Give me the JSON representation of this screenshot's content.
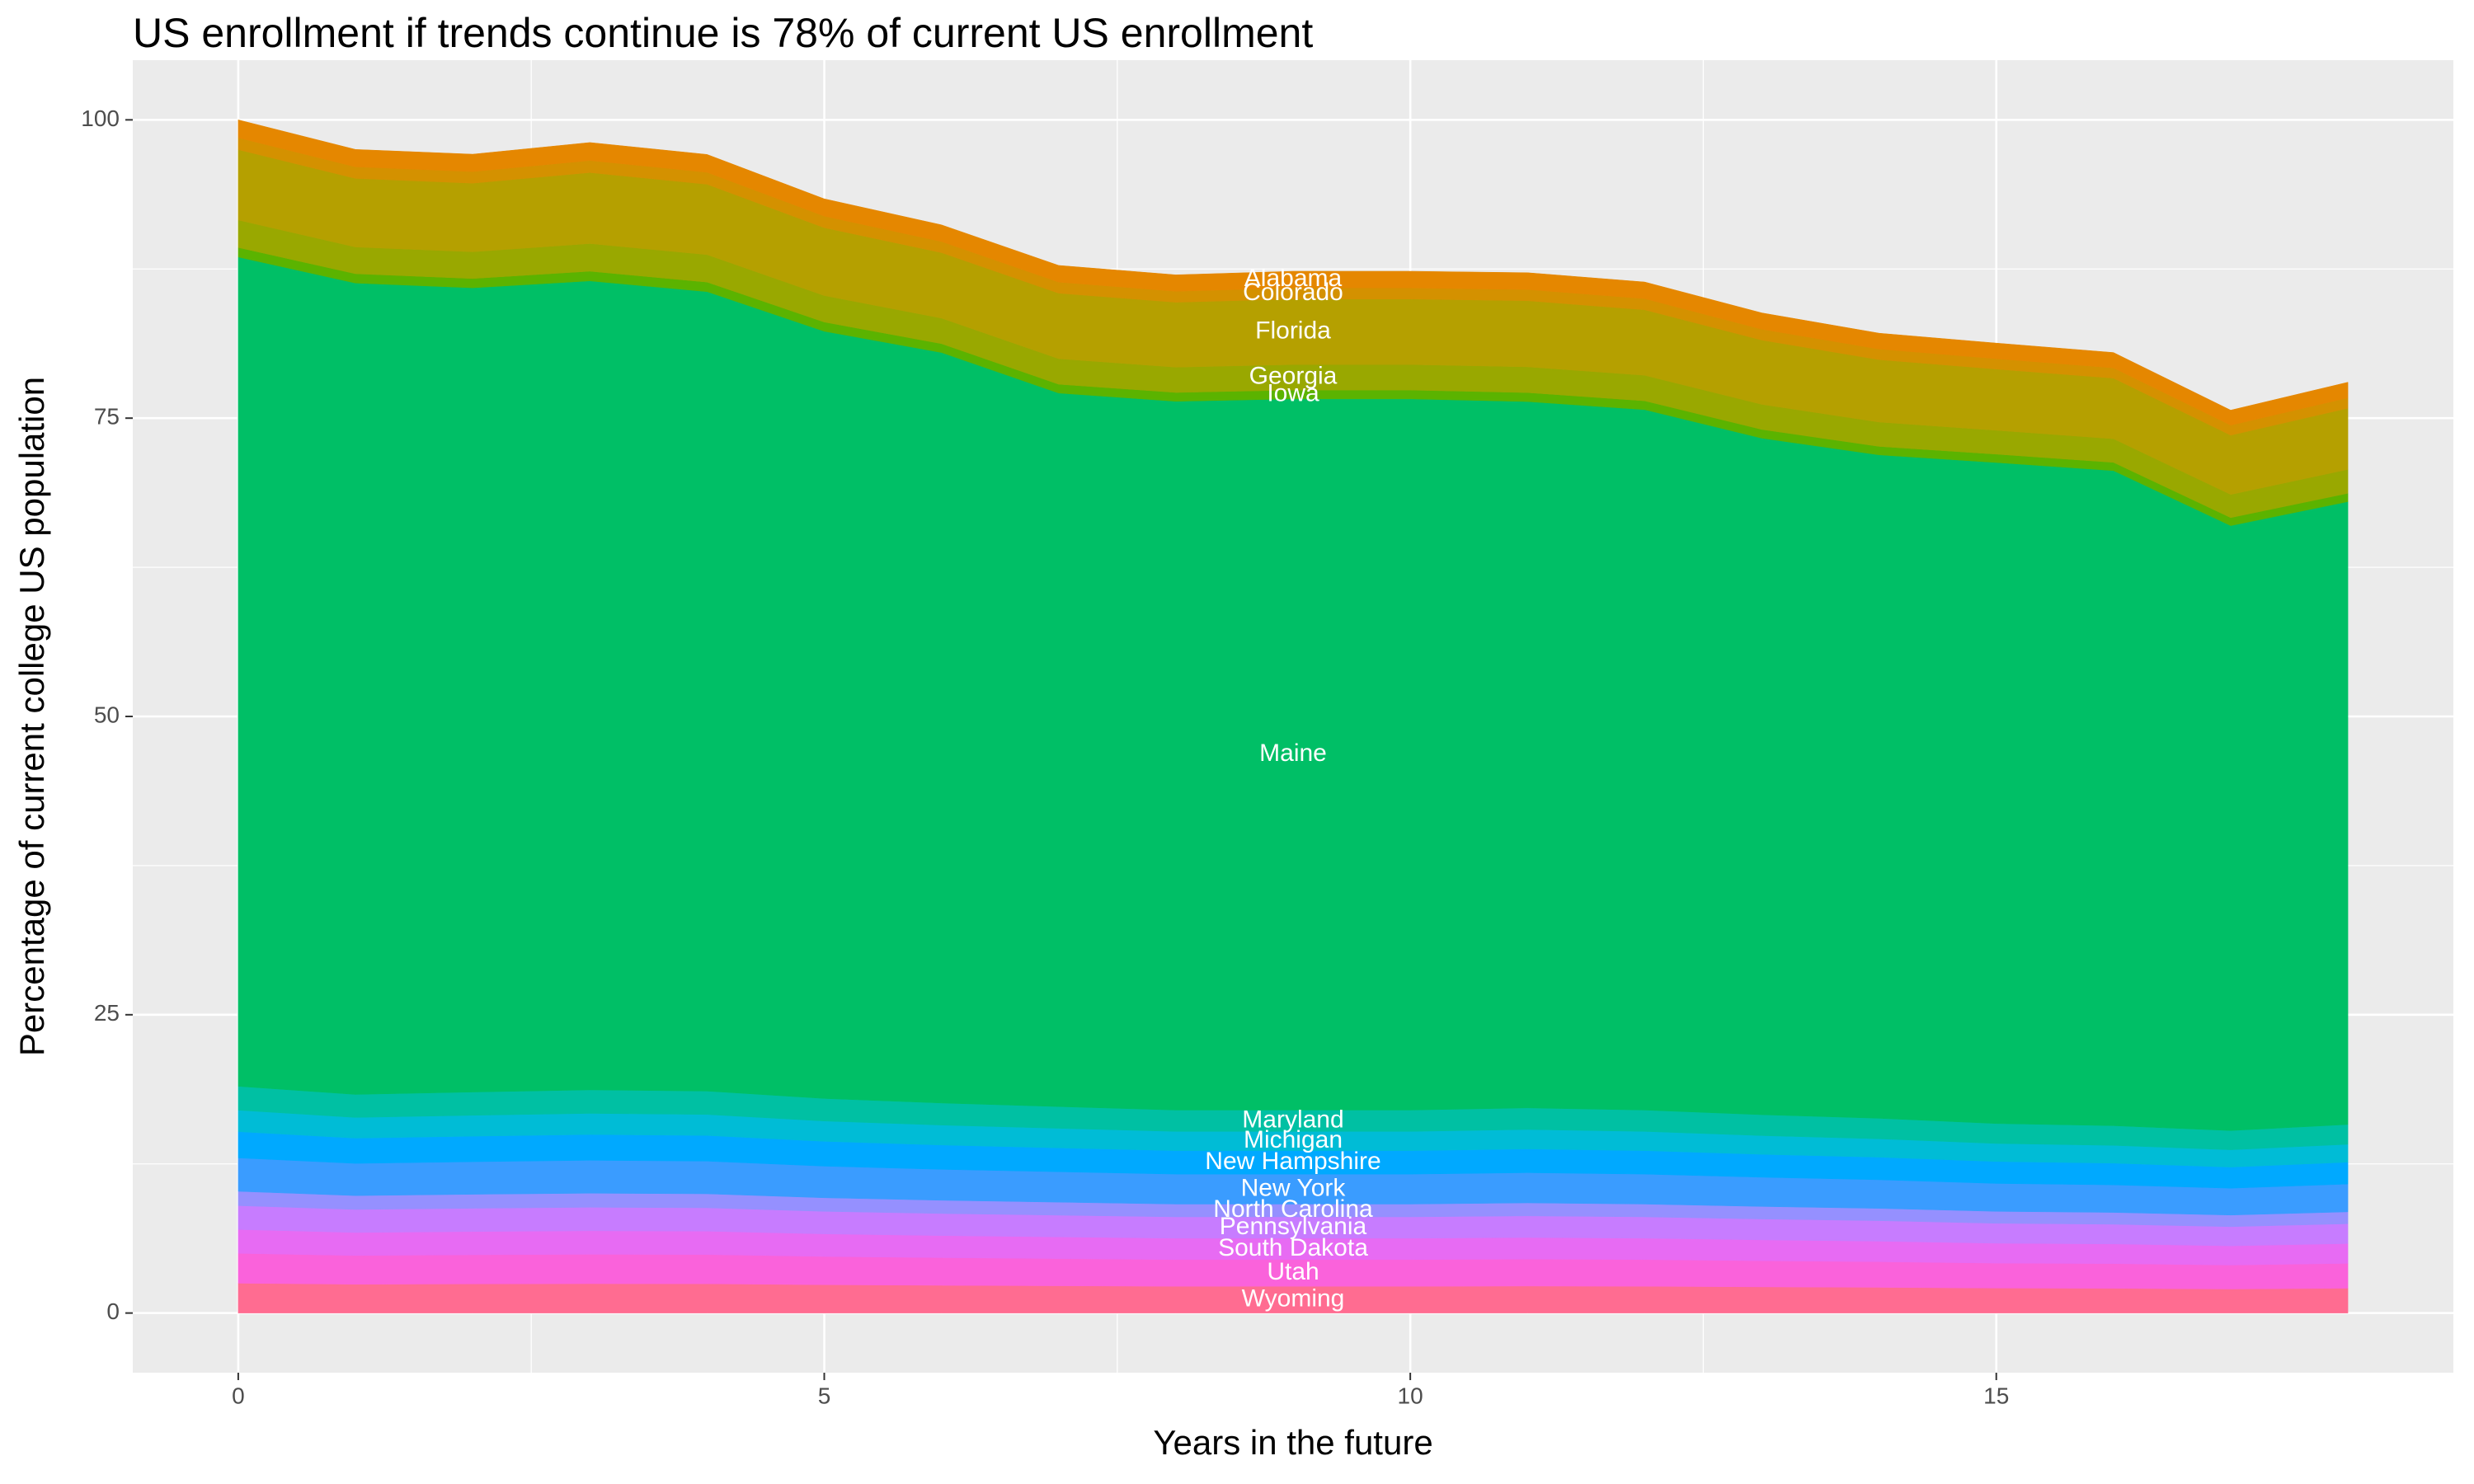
{
  "chart_data": {
    "type": "stacked_area",
    "title": "US enrollment if trends continue is 78% of current US enrollment",
    "x_label": "Years in the future",
    "y_label": "Percentage of current college US population",
    "x": [
      0,
      1,
      2,
      3,
      4,
      5,
      6,
      7,
      8,
      9,
      10,
      11,
      12,
      13,
      14,
      15,
      16,
      17,
      18
    ],
    "xlim": [
      -0.9,
      18.9
    ],
    "xticks": [
      0,
      5,
      10,
      15
    ],
    "ylim": [
      -5,
      105
    ],
    "yticks": [
      0,
      25,
      50,
      75,
      100
    ],
    "grid": true,
    "label_x": 9,
    "series": [
      {
        "name": "Alabama",
        "color": "#e58700",
        "values": [
          1.5,
          1.46,
          1.46,
          1.51,
          1.5,
          1.45,
          1.4,
          1.4,
          1.38,
          1.4,
          1.4,
          1.41,
          1.4,
          1.37,
          1.33,
          1.31,
          1.29,
          1.26,
          1.31
        ]
      },
      {
        "name": "Colorado",
        "color": "#d49100",
        "values": [
          1.0,
          0.97,
          0.97,
          1.01,
          1.0,
          0.97,
          0.93,
          0.93,
          0.92,
          0.93,
          0.93,
          0.94,
          0.93,
          0.91,
          0.89,
          0.87,
          0.86,
          0.84,
          0.87
        ]
      },
      {
        "name": "Florida",
        "color": "#b5a000",
        "values": [
          5.9,
          5.75,
          5.75,
          5.95,
          5.9,
          5.69,
          5.49,
          5.49,
          5.44,
          5.49,
          5.49,
          5.54,
          5.49,
          5.39,
          5.23,
          5.13,
          5.08,
          4.97,
          5.13
        ]
      },
      {
        "name": "Georgia",
        "color": "#99a800",
        "values": [
          2.3,
          2.24,
          2.24,
          2.32,
          2.3,
          2.22,
          2.14,
          2.14,
          2.12,
          2.14,
          2.14,
          2.16,
          2.14,
          2.1,
          2.04,
          2.0,
          1.98,
          1.94,
          2.0
        ]
      },
      {
        "name": "Iowa",
        "color": "#5bb300",
        "values": [
          0.8,
          0.78,
          0.78,
          0.81,
          0.8,
          0.77,
          0.74,
          0.74,
          0.74,
          0.74,
          0.74,
          0.75,
          0.74,
          0.73,
          0.71,
          0.7,
          0.69,
          0.67,
          0.7
        ]
      },
      {
        "name": "Maine",
        "color": "#00bf66",
        "values": [
          69.5,
          68.0,
          67.4,
          67.8,
          67.0,
          64.3,
          62.9,
          59.8,
          59.4,
          59.6,
          59.6,
          59.2,
          58.7,
          56.7,
          55.6,
          55.4,
          54.9,
          50.7,
          52.2
        ]
      },
      {
        "name": "Maryland",
        "color": "#00c0a3",
        "values": [
          2.0,
          1.93,
          1.95,
          1.97,
          1.96,
          1.89,
          1.85,
          1.82,
          1.79,
          1.79,
          1.79,
          1.81,
          1.79,
          1.75,
          1.72,
          1.67,
          1.65,
          1.61,
          1.66
        ]
      },
      {
        "name": "Michigan",
        "color": "#00bcd6",
        "values": [
          1.8,
          1.73,
          1.75,
          1.77,
          1.76,
          1.7,
          1.67,
          1.64,
          1.61,
          1.61,
          1.61,
          1.63,
          1.61,
          1.57,
          1.54,
          1.51,
          1.49,
          1.45,
          1.5
        ]
      },
      {
        "name": "New Hampshire",
        "color": "#00a9ff",
        "values": [
          2.2,
          2.12,
          2.14,
          2.16,
          2.15,
          2.08,
          2.04,
          2.0,
          1.97,
          1.97,
          1.97,
          1.99,
          1.97,
          1.92,
          1.89,
          1.84,
          1.82,
          1.77,
          1.83
        ]
      },
      {
        "name": "New York",
        "color": "#3a9cff",
        "values": [
          2.8,
          2.7,
          2.73,
          2.76,
          2.74,
          2.65,
          2.59,
          2.55,
          2.51,
          2.51,
          2.51,
          2.53,
          2.51,
          2.45,
          2.4,
          2.34,
          2.31,
          2.25,
          2.33
        ]
      },
      {
        "name": "North Carolina",
        "color": "#9590ff",
        "values": [
          1.2,
          1.16,
          1.17,
          1.18,
          1.17,
          1.14,
          1.11,
          1.09,
          1.07,
          1.07,
          1.07,
          1.09,
          1.07,
          1.05,
          1.03,
          1.0,
          0.99,
          0.97,
          1.0
        ]
      },
      {
        "name": "Pennsylvania",
        "color": "#c77cff",
        "values": [
          2.0,
          1.93,
          1.95,
          1.97,
          1.96,
          1.89,
          1.85,
          1.82,
          1.79,
          1.79,
          1.79,
          1.81,
          1.79,
          1.75,
          1.72,
          1.67,
          1.65,
          1.61,
          1.66
        ]
      },
      {
        "name": "South Dakota",
        "color": "#e76bf3",
        "values": [
          2.0,
          1.93,
          1.95,
          1.97,
          1.96,
          1.89,
          1.85,
          1.82,
          1.79,
          1.79,
          1.79,
          1.81,
          1.79,
          1.75,
          1.72,
          1.67,
          1.65,
          1.61,
          1.66
        ]
      },
      {
        "name": "Utah",
        "color": "#fa62db",
        "values": [
          2.5,
          2.41,
          2.44,
          2.46,
          2.45,
          2.37,
          2.32,
          2.28,
          2.24,
          2.24,
          2.24,
          2.26,
          2.24,
          2.19,
          2.15,
          2.09,
          2.07,
          2.01,
          2.08
        ]
      },
      {
        "name": "Wyoming",
        "color": "#ff6c91",
        "values": [
          2.5,
          2.41,
          2.44,
          2.46,
          2.45,
          2.37,
          2.32,
          2.28,
          2.24,
          2.24,
          2.24,
          2.26,
          2.24,
          2.19,
          2.15,
          2.09,
          2.07,
          2.01,
          2.08
        ]
      }
    ]
  }
}
